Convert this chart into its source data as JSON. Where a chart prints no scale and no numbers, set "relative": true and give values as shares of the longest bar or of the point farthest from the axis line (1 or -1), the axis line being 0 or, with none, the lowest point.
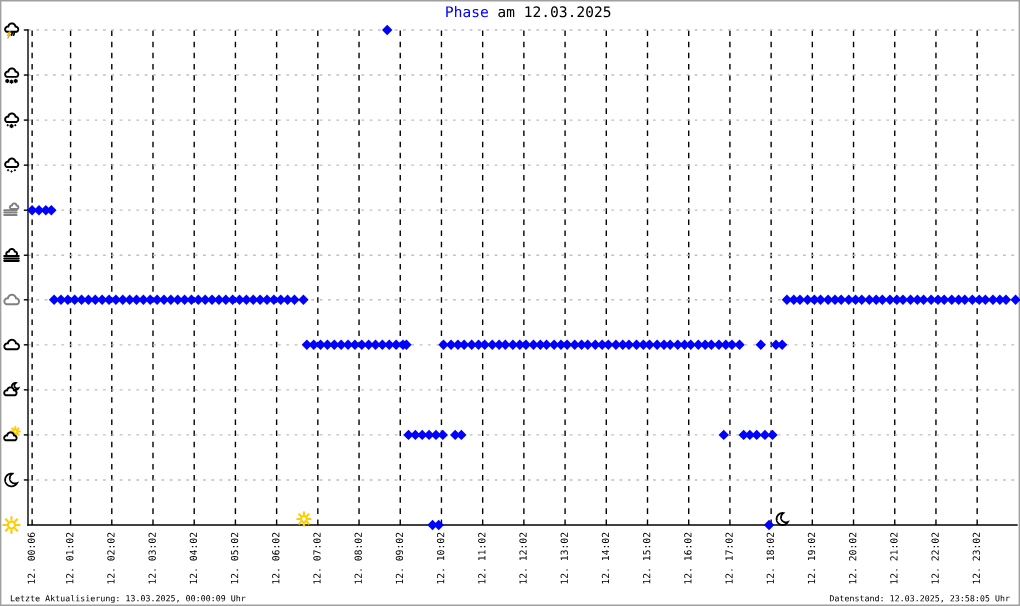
{
  "chart_data": {
    "type": "scatter",
    "title": "am 12.03.2025",
    "annotations": [
      "Letzte Aktualisierung: 13.03.2025, 00:00:09 Uhr",
      "Datenstand: 12.03.2025, 23:58:05 Uhr"
    ],
    "relative": true,
    "marker": "diamond",
    "grid": "x",
    "tick_labels": "x",
    "xlim": [
      "2025-03-12T00:00",
      "2025-03-13T00:00"
    ],
    "xticks": [
      {
        "value": "2025-03-12T00:06",
        "label": "12. 00:06"
      },
      {
        "value": "2025-03-12T01:02",
        "label": "12. 01:02"
      },
      {
        "value": "2025-03-12T02:02",
        "label": "12. 02:02"
      },
      {
        "value": "2025-03-12T03:02",
        "label": "12. 03:02"
      },
      {
        "value": "2025-03-12T04:02",
        "label": "12. 04:02"
      },
      {
        "value": "2025-03-12T05:02",
        "label": "12. 05:02"
      },
      {
        "value": "2025-03-12T06:02",
        "label": "12. 06:02"
      },
      {
        "value": "2025-03-12T07:02",
        "label": "12. 07:02"
      },
      {
        "value": "2025-03-12T08:02",
        "label": "12. 08:02"
      },
      {
        "value": "2025-03-12T09:02",
        "label": "12. 09:02"
      },
      {
        "value": "2025-03-12T10:02",
        "label": "12. 10:02"
      },
      {
        "value": "2025-03-12T11:02",
        "label": "12. 11:02"
      },
      {
        "value": "2025-03-12T12:02",
        "label": "12. 12:02"
      },
      {
        "value": "2025-03-12T13:02",
        "label": "12. 13:02"
      },
      {
        "value": "2025-03-12T14:02",
        "label": "12. 14:02"
      },
      {
        "value": "2025-03-12T15:02",
        "label": "12. 15:02"
      },
      {
        "value": "2025-03-12T16:02",
        "label": "12. 16:02"
      },
      {
        "value": "2025-03-12T17:02",
        "label": "12. 17:02"
      },
      {
        "value": "2025-03-12T18:02",
        "label": "12. 18:02"
      },
      {
        "value": "2025-03-12T19:02",
        "label": "12. 19:02"
      },
      {
        "value": "2025-03-12T20:02",
        "label": "12. 20:02"
      },
      {
        "value": "2025-03-12T21:02",
        "label": "12. 21:02"
      },
      {
        "value": "2025-03-12T22:02",
        "label": "12. 22:02"
      },
      {
        "value": "2025-03-12T23:02",
        "label": "12. 23:02"
      }
    ],
    "ref_lines": [
      {
        "axis": "y",
        "value": 0.091,
        "color": "#c0c0c0",
        "line_style": "dotted"
      },
      {
        "axis": "y",
        "value": 0.182,
        "color": "#c0c0c0",
        "line_style": "dotted"
      },
      {
        "axis": "y",
        "value": 0.273,
        "color": "#c0c0c0",
        "line_style": "dotted"
      },
      {
        "axis": "y",
        "value": 0.364,
        "color": "#c0c0c0",
        "line_style": "dotted"
      },
      {
        "axis": "y",
        "value": 0.455,
        "color": "#c0c0c0",
        "line_style": "dotted"
      },
      {
        "axis": "y",
        "value": 0.545,
        "color": "#c0c0c0",
        "line_style": "dotted"
      },
      {
        "axis": "y",
        "value": 0.636,
        "color": "#c0c0c0",
        "line_style": "dotted"
      },
      {
        "axis": "y",
        "value": 0.727,
        "color": "#c0c0c0",
        "line_style": "dotted"
      },
      {
        "axis": "y",
        "value": 0.818,
        "color": "#c0c0c0",
        "line_style": "dotted"
      },
      {
        "axis": "y",
        "value": 0.909,
        "color": "#c0c0c0",
        "line_style": "dotted"
      },
      {
        "axis": "y",
        "value": 1,
        "color": "#c0c0c0",
        "line_style": "dotted"
      }
    ],
    "x": [
      "2025-03-12T00:06",
      "2025-03-12T00:16",
      "2025-03-12T00:26",
      "2025-03-12T00:34",
      "2025-03-12T00:38",
      "2025-03-12T00:48",
      "2025-03-12T00:58",
      "2025-03-12T01:08",
      "2025-03-12T01:18",
      "2025-03-12T01:28",
      "2025-03-12T01:38",
      "2025-03-12T01:48",
      "2025-03-12T01:58",
      "2025-03-12T02:08",
      "2025-03-12T02:18",
      "2025-03-12T02:28",
      "2025-03-12T02:38",
      "2025-03-12T02:48",
      "2025-03-12T02:58",
      "2025-03-12T03:08",
      "2025-03-12T03:18",
      "2025-03-12T03:28",
      "2025-03-12T03:38",
      "2025-03-12T03:48",
      "2025-03-12T03:58",
      "2025-03-12T04:08",
      "2025-03-12T04:18",
      "2025-03-12T04:28",
      "2025-03-12T04:38",
      "2025-03-12T04:48",
      "2025-03-12T04:58",
      "2025-03-12T05:08",
      "2025-03-12T05:18",
      "2025-03-12T05:28",
      "2025-03-12T05:38",
      "2025-03-12T05:48",
      "2025-03-12T05:58",
      "2025-03-12T06:08",
      "2025-03-12T06:18",
      "2025-03-12T06:28",
      "2025-03-12T06:41",
      "2025-03-12T06:46",
      "2025-03-12T06:56",
      "2025-03-12T07:06",
      "2025-03-12T07:16",
      "2025-03-12T07:26",
      "2025-03-12T07:36",
      "2025-03-12T07:46",
      "2025-03-12T07:56",
      "2025-03-12T08:06",
      "2025-03-12T08:16",
      "2025-03-12T08:26",
      "2025-03-12T08:36",
      "2025-03-12T08:43",
      "2025-03-12T08:46",
      "2025-03-12T08:56",
      "2025-03-12T09:06",
      "2025-03-12T09:11",
      "2025-03-12T09:14",
      "2025-03-12T09:24",
      "2025-03-12T09:34",
      "2025-03-12T09:44",
      "2025-03-12T09:49",
      "2025-03-12T09:54",
      "2025-03-12T09:58",
      "2025-03-12T10:04",
      "2025-03-12T10:05",
      "2025-03-12T10:16",
      "2025-03-12T10:22",
      "2025-03-12T10:26",
      "2025-03-12T10:31",
      "2025-03-12T10:35",
      "2025-03-12T10:46",
      "2025-03-12T10:56",
      "2025-03-12T11:05",
      "2025-03-12T11:16",
      "2025-03-12T11:26",
      "2025-03-12T11:35",
      "2025-03-12T11:46",
      "2025-03-12T11:56",
      "2025-03-12T12:05",
      "2025-03-12T12:16",
      "2025-03-12T12:26",
      "2025-03-12T12:35",
      "2025-03-12T12:46",
      "2025-03-12T12:56",
      "2025-03-12T13:05",
      "2025-03-12T13:16",
      "2025-03-12T13:26",
      "2025-03-12T13:35",
      "2025-03-12T13:46",
      "2025-03-12T13:56",
      "2025-03-12T14:05",
      "2025-03-12T14:16",
      "2025-03-12T14:26",
      "2025-03-12T14:35",
      "2025-03-12T14:46",
      "2025-03-12T14:56",
      "2025-03-12T15:05",
      "2025-03-12T15:16",
      "2025-03-12T15:26",
      "2025-03-12T15:35",
      "2025-03-12T15:46",
      "2025-03-12T15:56",
      "2025-03-12T16:05",
      "2025-03-12T16:16",
      "2025-03-12T16:26",
      "2025-03-12T16:35",
      "2025-03-12T16:46",
      "2025-03-12T16:53",
      "2025-03-12T16:56",
      "2025-03-12T17:05",
      "2025-03-12T17:16",
      "2025-03-12T17:22",
      "2025-03-12T17:31",
      "2025-03-12T17:41",
      "2025-03-12T17:47",
      "2025-03-12T17:53",
      "2025-03-12T17:59",
      "2025-03-12T18:04",
      "2025-03-12T18:09",
      "2025-03-12T18:18",
      "2025-03-12T18:25",
      "2025-03-12T18:35",
      "2025-03-12T18:44",
      "2025-03-12T18:55",
      "2025-03-12T19:05",
      "2025-03-12T19:14",
      "2025-03-12T19:25",
      "2025-03-12T19:35",
      "2025-03-12T19:44",
      "2025-03-12T19:55",
      "2025-03-12T20:05",
      "2025-03-12T20:14",
      "2025-03-12T20:25",
      "2025-03-12T20:35",
      "2025-03-12T20:44",
      "2025-03-12T20:55",
      "2025-03-12T21:05",
      "2025-03-12T21:14",
      "2025-03-12T21:25",
      "2025-03-12T21:35",
      "2025-03-12T21:44",
      "2025-03-12T21:55",
      "2025-03-12T22:05",
      "2025-03-12T22:14",
      "2025-03-12T22:25",
      "2025-03-12T22:35",
      "2025-03-12T22:44",
      "2025-03-12T22:55",
      "2025-03-12T23:05",
      "2025-03-12T23:14",
      "2025-03-12T23:25",
      "2025-03-12T23:35",
      "2025-03-12T23:44",
      "2025-03-12T23:58"
    ],
    "series": [
      {
        "name": "Phase",
        "color": "#0000ff",
        "values": [
          0.636,
          0.636,
          0.636,
          0.636,
          0.455,
          0.455,
          0.455,
          0.455,
          0.455,
          0.455,
          0.455,
          0.455,
          0.455,
          0.455,
          0.455,
          0.455,
          0.455,
          0.455,
          0.455,
          0.455,
          0.455,
          0.455,
          0.455,
          0.455,
          0.455,
          0.455,
          0.455,
          0.455,
          0.455,
          0.455,
          0.455,
          0.455,
          0.455,
          0.455,
          0.455,
          0.455,
          0.455,
          0.455,
          0.455,
          0.455,
          0.455,
          0.364,
          0.364,
          0.364,
          0.364,
          0.364,
          0.364,
          0.364,
          0.364,
          0.364,
          0.364,
          0.364,
          0.364,
          1,
          0.364,
          0.364,
          0.364,
          0.364,
          0.182,
          0.182,
          0.182,
          0.182,
          0,
          0.182,
          0,
          0.182,
          0.364,
          0.364,
          0.182,
          0.364,
          0.182,
          0.364,
          0.364,
          0.364,
          0.364,
          0.364,
          0.364,
          0.364,
          0.364,
          0.364,
          0.364,
          0.364,
          0.364,
          0.364,
          0.364,
          0.364,
          0.364,
          0.364,
          0.364,
          0.364,
          0.364,
          0.364,
          0.364,
          0.364,
          0.364,
          0.364,
          0.364,
          0.364,
          0.364,
          0.364,
          0.364,
          0.364,
          0.364,
          0.364,
          0.364,
          0.364,
          0.364,
          0.364,
          0.364,
          0.182,
          0.364,
          0.364,
          0.364,
          0.182,
          0.182,
          0.182,
          0.364,
          0.182,
          0,
          0.182,
          0.364,
          0.364,
          0.455,
          0.455,
          0.455,
          0.455,
          0.455,
          0.455,
          0.455,
          0.455,
          0.455,
          0.455,
          0.455,
          0.455,
          0.455,
          0.455,
          0.455,
          0.455,
          0.455,
          0.455,
          0.455,
          0.455,
          0.455,
          0.455,
          0.455,
          0.455,
          0.455,
          0.455,
          0.455,
          0.455,
          0.455,
          0.455,
          0.455,
          0.455,
          0.455,
          0.455
        ]
      }
    ]
  }
}
